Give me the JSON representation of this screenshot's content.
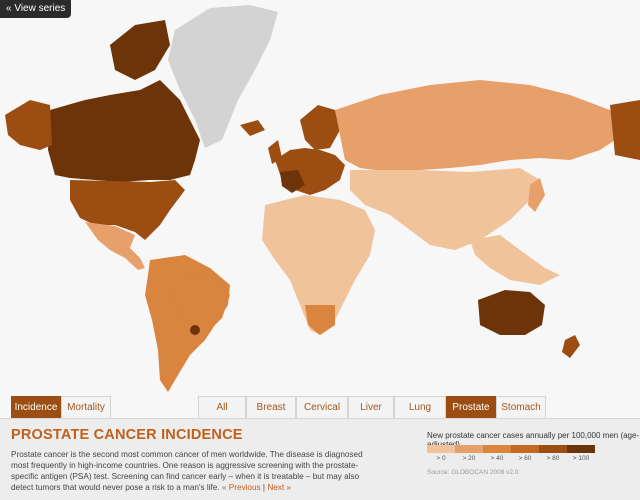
{
  "header": {
    "view_series": "« View series"
  },
  "colors": {
    "ocean": "#f7f7f7",
    "no_data": "#d3d3d3",
    "bin_0": "#f1c39b",
    "bin_20": "#e8a06a",
    "bin_40": "#d9843f",
    "bin_60": "#c06a26",
    "bin_80": "#9c4d12",
    "bin_100": "#6e3409",
    "accent": "#c0601b"
  },
  "tabs_left": [
    {
      "label": "Incidence",
      "active": true
    },
    {
      "label": "Mortality",
      "active": false
    }
  ],
  "tabs_right": [
    {
      "label": "All",
      "active": false
    },
    {
      "label": "Breast",
      "active": false
    },
    {
      "label": "Cervical",
      "active": false
    },
    {
      "label": "Liver",
      "active": false
    },
    {
      "label": "Lung",
      "active": false
    },
    {
      "label": "Prostate",
      "active": true
    },
    {
      "label": "Stomach",
      "active": false
    }
  ],
  "panel": {
    "title": "PROSTATE CANCER INCIDENCE",
    "description": "Prostate cancer is the second most common cancer of men worldwide. The disease is diagnosed most frequently in high-income countries. One reason is aggressive screening with the prostate-specific antigen (PSA) test. Screening can find cancer early – when it is treatable – but may also detect tumors that would never pose a risk to a man's life.",
    "prev_link": "« Previous",
    "separator": "|",
    "next_link": "Next »"
  },
  "legend": {
    "title": "New prostate cancer cases annually per 100,000 men (age-adjusted)",
    "labels": [
      "> 0",
      "> 20",
      "> 40",
      "> 60",
      "> 80",
      "> 100"
    ],
    "source": "Source: GLOBOCAN 2008 v2.0"
  }
}
